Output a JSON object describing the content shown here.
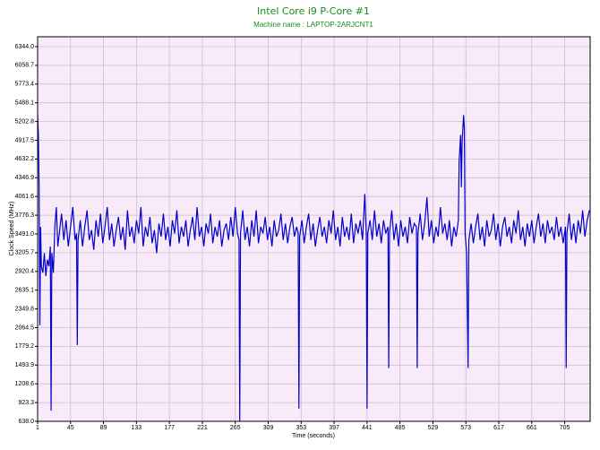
{
  "chart_data": {
    "type": "line",
    "title": "Intel Core i9 P-Core #1",
    "subtitle": "Machine name : LAPTOP-2ARJCNT1",
    "x_label": "Time (seconds)",
    "y_label": "Clock Speed (MHz)",
    "color": "#0000cc",
    "grid": true,
    "xlim": [
      1,
      739
    ],
    "ylim": [
      638,
      6494
    ],
    "xticks": [
      1,
      45,
      89,
      133,
      177,
      221,
      265,
      309,
      353,
      397,
      441,
      485,
      529,
      573,
      617,
      661,
      705
    ],
    "yticks": [
      {
        "value": 638,
        "label": "638.0"
      },
      {
        "value": 923.3,
        "label": "923.3"
      },
      {
        "value": 1208.6,
        "label": "1208.6"
      },
      {
        "value": 1493.9,
        "label": "1493.9"
      },
      {
        "value": 1779.2,
        "label": "1779.2"
      },
      {
        "value": 2064.5,
        "label": "2064.5"
      },
      {
        "value": 2349.8,
        "label": "2349.8"
      },
      {
        "value": 2635.1,
        "label": "2635.1"
      },
      {
        "value": 2920.4,
        "label": "2920.4"
      },
      {
        "value": 3205.7,
        "label": "3205.7"
      },
      {
        "value": 3491,
        "label": "3491.0"
      },
      {
        "value": 3776.3,
        "label": "3776.3"
      },
      {
        "value": 4061.6,
        "label": "4061.6"
      },
      {
        "value": 4346.9,
        "label": "4346.9"
      },
      {
        "value": 4632.2,
        "label": "4632.2"
      },
      {
        "value": 4917.5,
        "label": "4917.5"
      },
      {
        "value": 5202.8,
        "label": "5202.8"
      },
      {
        "value": 5488.1,
        "label": "5488.1"
      },
      {
        "value": 5773.4,
        "label": "5773.4"
      },
      {
        "value": 6058.7,
        "label": "6058.7"
      },
      {
        "value": 6344,
        "label": "6344.0"
      }
    ],
    "x": [
      1,
      2,
      3,
      4,
      5,
      6,
      8,
      10,
      12,
      14,
      16,
      18,
      19,
      20,
      22,
      24,
      26,
      28,
      30,
      33,
      36,
      39,
      42,
      45,
      48,
      51,
      53,
      54,
      55,
      58,
      61,
      64,
      67,
      70,
      73,
      76,
      79,
      82,
      85,
      88,
      91,
      94,
      97,
      100,
      103,
      106,
      109,
      112,
      115,
      118,
      121,
      124,
      127,
      130,
      133,
      136,
      139,
      142,
      145,
      148,
      151,
      154,
      157,
      160,
      163,
      166,
      169,
      172,
      175,
      178,
      181,
      184,
      187,
      190,
      193,
      196,
      199,
      202,
      205,
      208,
      211,
      214,
      217,
      220,
      223,
      226,
      229,
      232,
      235,
      238,
      241,
      244,
      247,
      250,
      253,
      256,
      259,
      262,
      265,
      268,
      270,
      271,
      272,
      275,
      278,
      281,
      284,
      287,
      290,
      293,
      296,
      299,
      302,
      305,
      308,
      311,
      314,
      317,
      320,
      323,
      326,
      329,
      332,
      335,
      338,
      341,
      344,
      347,
      349,
      350,
      351,
      354,
      357,
      360,
      363,
      366,
      369,
      372,
      375,
      378,
      381,
      384,
      387,
      390,
      393,
      396,
      399,
      402,
      405,
      408,
      411,
      414,
      417,
      420,
      423,
      426,
      429,
      432,
      435,
      438,
      440,
      441,
      442,
      445,
      448,
      451,
      454,
      457,
      460,
      463,
      466,
      469,
      470,
      471,
      474,
      477,
      480,
      483,
      486,
      489,
      492,
      495,
      498,
      501,
      504,
      507,
      508,
      509,
      512,
      515,
      518,
      521,
      524,
      527,
      530,
      533,
      536,
      539,
      542,
      545,
      548,
      551,
      554,
      557,
      560,
      563,
      564,
      566,
      567,
      568,
      570,
      571,
      572,
      574,
      576,
      577,
      580,
      583,
      586,
      589,
      592,
      595,
      598,
      601,
      604,
      607,
      610,
      613,
      616,
      619,
      622,
      625,
      628,
      631,
      634,
      637,
      640,
      643,
      646,
      649,
      652,
      655,
      658,
      661,
      664,
      667,
      670,
      673,
      676,
      679,
      682,
      685,
      688,
      691,
      694,
      697,
      700,
      703,
      706,
      707,
      708,
      711,
      714,
      717,
      720,
      723,
      726,
      729,
      732,
      735,
      738
    ],
    "values": [
      5300,
      5000,
      4200,
      2100,
      3600,
      3000,
      2900,
      3200,
      2850,
      3100,
      3000,
      3300,
      800,
      3200,
      2900,
      3600,
      3900,
      3300,
      3500,
      3800,
      3400,
      3700,
      3300,
      3600,
      3900,
      3400,
      3500,
      1800,
      3400,
      3700,
      3300,
      3600,
      3850,
      3400,
      3550,
      3250,
      3700,
      3450,
      3800,
      3350,
      3600,
      3900,
      3400,
      3650,
      3300,
      3550,
      3750,
      3400,
      3600,
      3250,
      3850,
      3450,
      3600,
      3350,
      3700,
      3500,
      3900,
      3300,
      3600,
      3450,
      3750,
      3350,
      3550,
      3200,
      3650,
      3450,
      3800,
      3400,
      3600,
      3300,
      3700,
      3500,
      3850,
      3350,
      3600,
      3450,
      3700,
      3300,
      3550,
      3750,
      3400,
      3900,
      3450,
      3600,
      3300,
      3650,
      3500,
      3800,
      3350,
      3600,
      3450,
      3700,
      3300,
      3550,
      3650,
      3400,
      3750,
      3450,
      3900,
      3500,
      3400,
      638,
      3500,
      3850,
      3400,
      3600,
      3300,
      3700,
      3450,
      3850,
      3350,
      3600,
      3500,
      3750,
      3400,
      3600,
      3300,
      3700,
      3450,
      3550,
      3800,
      3400,
      3650,
      3350,
      3600,
      3750,
      3450,
      3600,
      3500,
      830,
      3450,
      3700,
      3350,
      3600,
      3800,
      3400,
      3650,
      3300,
      3550,
      3750,
      3450,
      3600,
      3350,
      3700,
      3500,
      3850,
      3400,
      3600,
      3300,
      3750,
      3450,
      3600,
      3400,
      3800,
      3350,
      3650,
      3500,
      3700,
      3400,
      4100,
      3500,
      830,
      3500,
      3700,
      3400,
      3850,
      3450,
      3650,
      3350,
      3700,
      3500,
      3600,
      1450,
      3500,
      3850,
      3400,
      3650,
      3300,
      3700,
      3450,
      3600,
      3350,
      3750,
      3500,
      3650,
      3600,
      1450,
      3500,
      3800,
      3400,
      3650,
      4050,
      3450,
      3700,
      3350,
      3600,
      3450,
      3900,
      3500,
      3650,
      3400,
      3700,
      3300,
      3600,
      3450,
      3700,
      4600,
      5000,
      4200,
      4900,
      5300,
      5100,
      3500,
      3200,
      1450,
      3400,
      3650,
      3350,
      3600,
      3800,
      3400,
      3600,
      3300,
      3700,
      3450,
      3550,
      3800,
      3400,
      3650,
      3300,
      3600,
      3750,
      3450,
      3600,
      3350,
      3700,
      3500,
      3850,
      3400,
      3600,
      3300,
      3650,
      3450,
      3700,
      3350,
      3600,
      3800,
      3450,
      3650,
      3350,
      3700,
      3500,
      3600,
      3400,
      3750,
      3450,
      3600,
      3350,
      3600,
      1450,
      3500,
      3800,
      3400,
      3650,
      3350,
      3700,
      3500,
      3850,
      3450,
      3700,
      3850
    ]
  }
}
